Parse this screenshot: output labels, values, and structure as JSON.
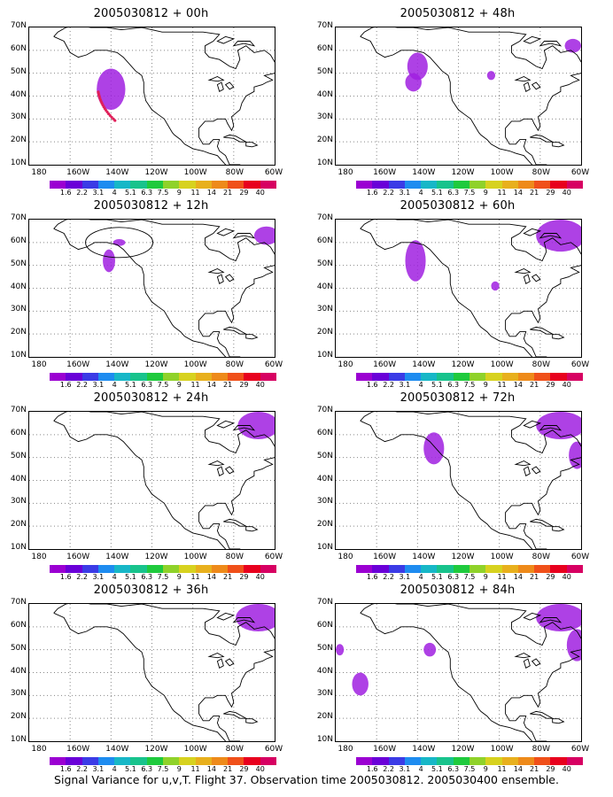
{
  "panels": [
    {
      "title": "2005030812 + 00h"
    },
    {
      "title": "2005030812 + 48h"
    },
    {
      "title": "2005030812 + 12h"
    },
    {
      "title": "2005030812 + 60h"
    },
    {
      "title": "2005030812 + 24h"
    },
    {
      "title": "2005030812 + 72h"
    },
    {
      "title": "2005030812 + 36h"
    },
    {
      "title": "2005030812 + 84h"
    }
  ],
  "lat_labels": [
    "70N",
    "60N",
    "50N",
    "40N",
    "30N",
    "20N",
    "10N"
  ],
  "lon_labels": [
    "180",
    "160W",
    "140W",
    "120W",
    "100W",
    "80W",
    "60W"
  ],
  "colorbar": {
    "labels": [
      "1.6",
      "2.2",
      "3.1",
      "4",
      "5.1",
      "6.3",
      "7.5",
      "9",
      "11",
      "14",
      "21",
      "29",
      "40"
    ],
    "colors": [
      "#9b00d2",
      "#6a00d8",
      "#3b3be6",
      "#1e8cf0",
      "#17b7c7",
      "#18c38c",
      "#1fca3d",
      "#8fd22a",
      "#d7d21f",
      "#e8b01d",
      "#ee8a1a",
      "#f0501a",
      "#e8001e",
      "#d70062"
    ]
  },
  "footer": "Signal Variance for u,v,T. Flight 37. Observation time 2005030812. 2005030400 ensemble."
}
